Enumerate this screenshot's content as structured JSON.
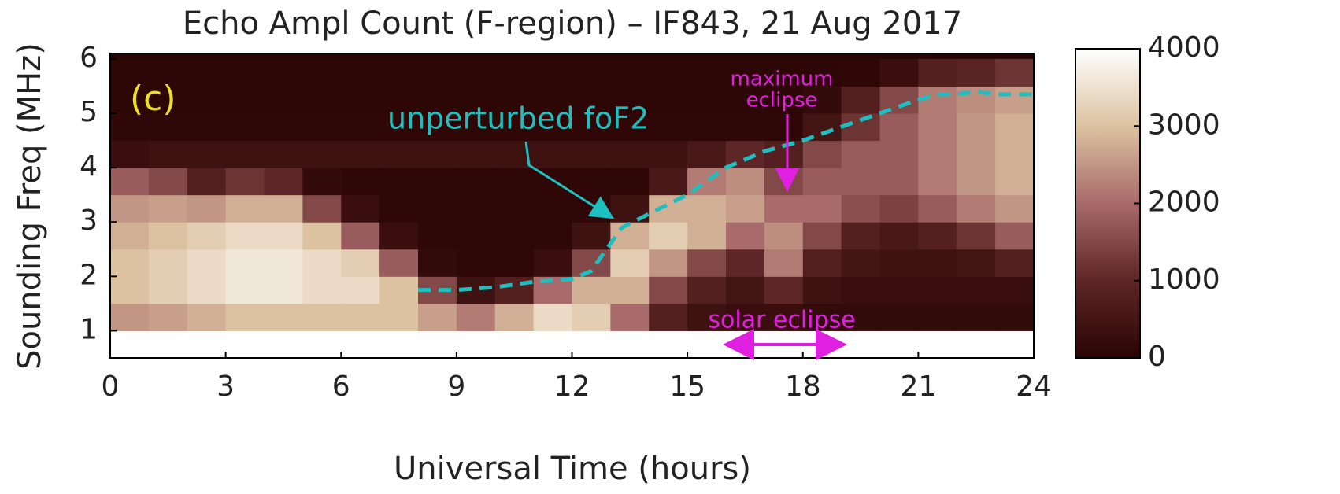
{
  "chart_data": {
    "type": "heatmap",
    "title": "Echo Ampl Count (F-region) – IF843, 21 Aug 2017",
    "x_label": "Universal Time (hours)",
    "y_label": "Sounding Freq (MHz)",
    "panel_label": "(c)",
    "xbins": [
      0,
      1,
      2,
      3,
      4,
      5,
      6,
      7,
      8,
      9,
      10,
      11,
      12,
      13,
      14,
      15,
      16,
      17,
      18,
      19,
      20,
      21,
      22,
      23,
      24
    ],
    "ybins": [
      1,
      1.5,
      2,
      2.5,
      3,
      3.5,
      4,
      4.5,
      5,
      5.5,
      6
    ],
    "values": [
      [
        2500,
        3000,
        3000,
        2800,
        2500,
        1800,
        300,
        100,
        50,
        50
      ],
      [
        2600,
        3200,
        3200,
        3000,
        2600,
        1500,
        400,
        100,
        50,
        50
      ],
      [
        2800,
        3400,
        3400,
        3200,
        2500,
        800,
        400,
        100,
        50,
        50
      ],
      [
        3000,
        3600,
        3600,
        3400,
        2800,
        1200,
        400,
        100,
        50,
        50
      ],
      [
        3000,
        3600,
        3600,
        3400,
        2800,
        1000,
        400,
        100,
        50,
        50
      ],
      [
        3000,
        3400,
        3400,
        3000,
        1500,
        200,
        400,
        100,
        50,
        50
      ],
      [
        3000,
        3400,
        3200,
        1800,
        300,
        100,
        400,
        100,
        50,
        50
      ],
      [
        3000,
        3000,
        1800,
        300,
        100,
        100,
        400,
        100,
        50,
        50
      ],
      [
        2600,
        1500,
        200,
        100,
        100,
        100,
        400,
        100,
        50,
        50
      ],
      [
        2200,
        400,
        100,
        100,
        100,
        100,
        400,
        100,
        50,
        50
      ],
      [
        2800,
        800,
        100,
        100,
        100,
        100,
        400,
        100,
        50,
        50
      ],
      [
        3400,
        2000,
        300,
        100,
        100,
        100,
        400,
        100,
        50,
        50
      ],
      [
        3200,
        2800,
        1500,
        400,
        100,
        100,
        400,
        100,
        50,
        50
      ],
      [
        2000,
        2800,
        3200,
        2800,
        400,
        100,
        400,
        100,
        50,
        50
      ],
      [
        800,
        1500,
        2500,
        3200,
        2800,
        600,
        400,
        100,
        50,
        50
      ],
      [
        400,
        800,
        1500,
        2800,
        2800,
        2200,
        600,
        100,
        50,
        50
      ],
      [
        300,
        500,
        1000,
        2000,
        2600,
        2400,
        1000,
        100,
        50,
        50
      ],
      [
        300,
        1000,
        2200,
        2400,
        2000,
        1500,
        800,
        100,
        50,
        50
      ],
      [
        200,
        400,
        800,
        1500,
        2000,
        1800,
        1500,
        500,
        200,
        50
      ],
      [
        200,
        300,
        500,
        800,
        1600,
        1800,
        1800,
        1200,
        800,
        100
      ],
      [
        200,
        300,
        400,
        600,
        1400,
        1800,
        1800,
        1800,
        1500,
        300
      ],
      [
        200,
        300,
        400,
        800,
        1800,
        2200,
        2200,
        2200,
        2200,
        800
      ],
      [
        200,
        300,
        500,
        1200,
        2200,
        2500,
        2500,
        2500,
        2400,
        900
      ],
      [
        200,
        300,
        800,
        1800,
        2500,
        2800,
        2800,
        2800,
        2600,
        1200
      ]
    ],
    "colormap": [
      "#2a0404",
      "#5e2626",
      "#a86a6a",
      "#dcc2a0",
      "#ffffff"
    ],
    "zlim": [
      0,
      4000
    ],
    "zticks": [
      0,
      1000,
      2000,
      3000,
      4000
    ],
    "xlim": [
      0,
      24
    ],
    "xticks": [
      0,
      3,
      6,
      9,
      12,
      15,
      18,
      21,
      24
    ],
    "ylim": [
      0.5,
      6.1
    ],
    "yticks": [
      1,
      2,
      3,
      4,
      5,
      6
    ],
    "foF2": {
      "name": "unperturbed foF2",
      "color": "#1fbfbf",
      "x": [
        8,
        9,
        10,
        11,
        12,
        12.5,
        13,
        13.3,
        14,
        15,
        16,
        17,
        18,
        19,
        20,
        21,
        21.5,
        22,
        22.5,
        23,
        24
      ],
      "y": [
        1.75,
        1.75,
        1.8,
        1.9,
        1.95,
        2.1,
        2.6,
        2.9,
        3.15,
        3.5,
        4.0,
        4.3,
        4.5,
        4.75,
        5.0,
        5.25,
        5.35,
        5.35,
        5.4,
        5.35,
        5.35
      ]
    },
    "annotations": {
      "maximum_eclipse": [
        "maximum",
        "eclipse"
      ],
      "solar_eclipse": "solar eclipse"
    }
  }
}
